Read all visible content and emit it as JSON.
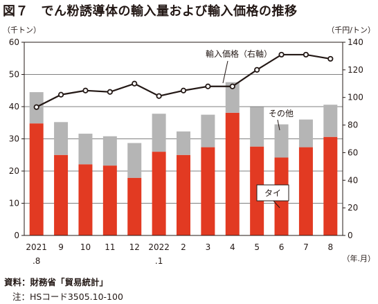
{
  "title": "図７　でん粉誘導体の輸入量および輸入価格の推移",
  "notes": {
    "source": "資料：財務省「貿易統計」",
    "note": "注：HSコード3505.10-100"
  },
  "chart_data": {
    "type": "bar",
    "categories": [
      {
        "top": "2021",
        "bottom": ".8"
      },
      {
        "top": "9",
        "bottom": ""
      },
      {
        "top": "10",
        "bottom": ""
      },
      {
        "top": "11",
        "bottom": ""
      },
      {
        "top": "12",
        "bottom": ""
      },
      {
        "top": "2022",
        "bottom": ".1"
      },
      {
        "top": "2",
        "bottom": ""
      },
      {
        "top": "3",
        "bottom": ""
      },
      {
        "top": "4",
        "bottom": ""
      },
      {
        "top": "5",
        "bottom": ""
      },
      {
        "top": "6",
        "bottom": ""
      },
      {
        "top": "7",
        "bottom": ""
      },
      {
        "top": "8",
        "bottom": ""
      }
    ],
    "x_unit": "（年.月）",
    "y_left": {
      "unit": "（千トン）",
      "min": 0,
      "max": 60,
      "ticks": [
        0,
        10,
        20,
        30,
        40,
        50,
        60
      ]
    },
    "y_right": {
      "unit": "（千円/トン）",
      "min": 0,
      "max": 140,
      "ticks": [
        0,
        20,
        40,
        60,
        80,
        100,
        120,
        140
      ]
    },
    "gridlines": true,
    "stacked_series": [
      {
        "name": "タイ",
        "color": "#e23a22",
        "values": [
          34.8,
          25.0,
          22.1,
          21.7,
          17.9,
          26.0,
          25.0,
          27.4,
          38.1,
          27.6,
          24.2,
          27.4,
          30.6
        ]
      },
      {
        "name": "その他",
        "color": "#b5b5b5",
        "values": [
          9.7,
          10.2,
          9.5,
          9.1,
          10.8,
          11.8,
          7.3,
          10.1,
          9.5,
          12.3,
          10.3,
          8.6,
          10.0
        ]
      }
    ],
    "line_series": {
      "name": "輸入価格（右軸）",
      "axis": "right",
      "color": "#231815",
      "values": [
        93,
        102,
        105,
        104,
        110,
        101,
        105,
        108,
        108,
        120,
        131,
        131,
        128
      ]
    },
    "annotations": {
      "line_label": "輸入価格（右軸）",
      "other_label": "その他",
      "thai_label": "タイ"
    }
  }
}
